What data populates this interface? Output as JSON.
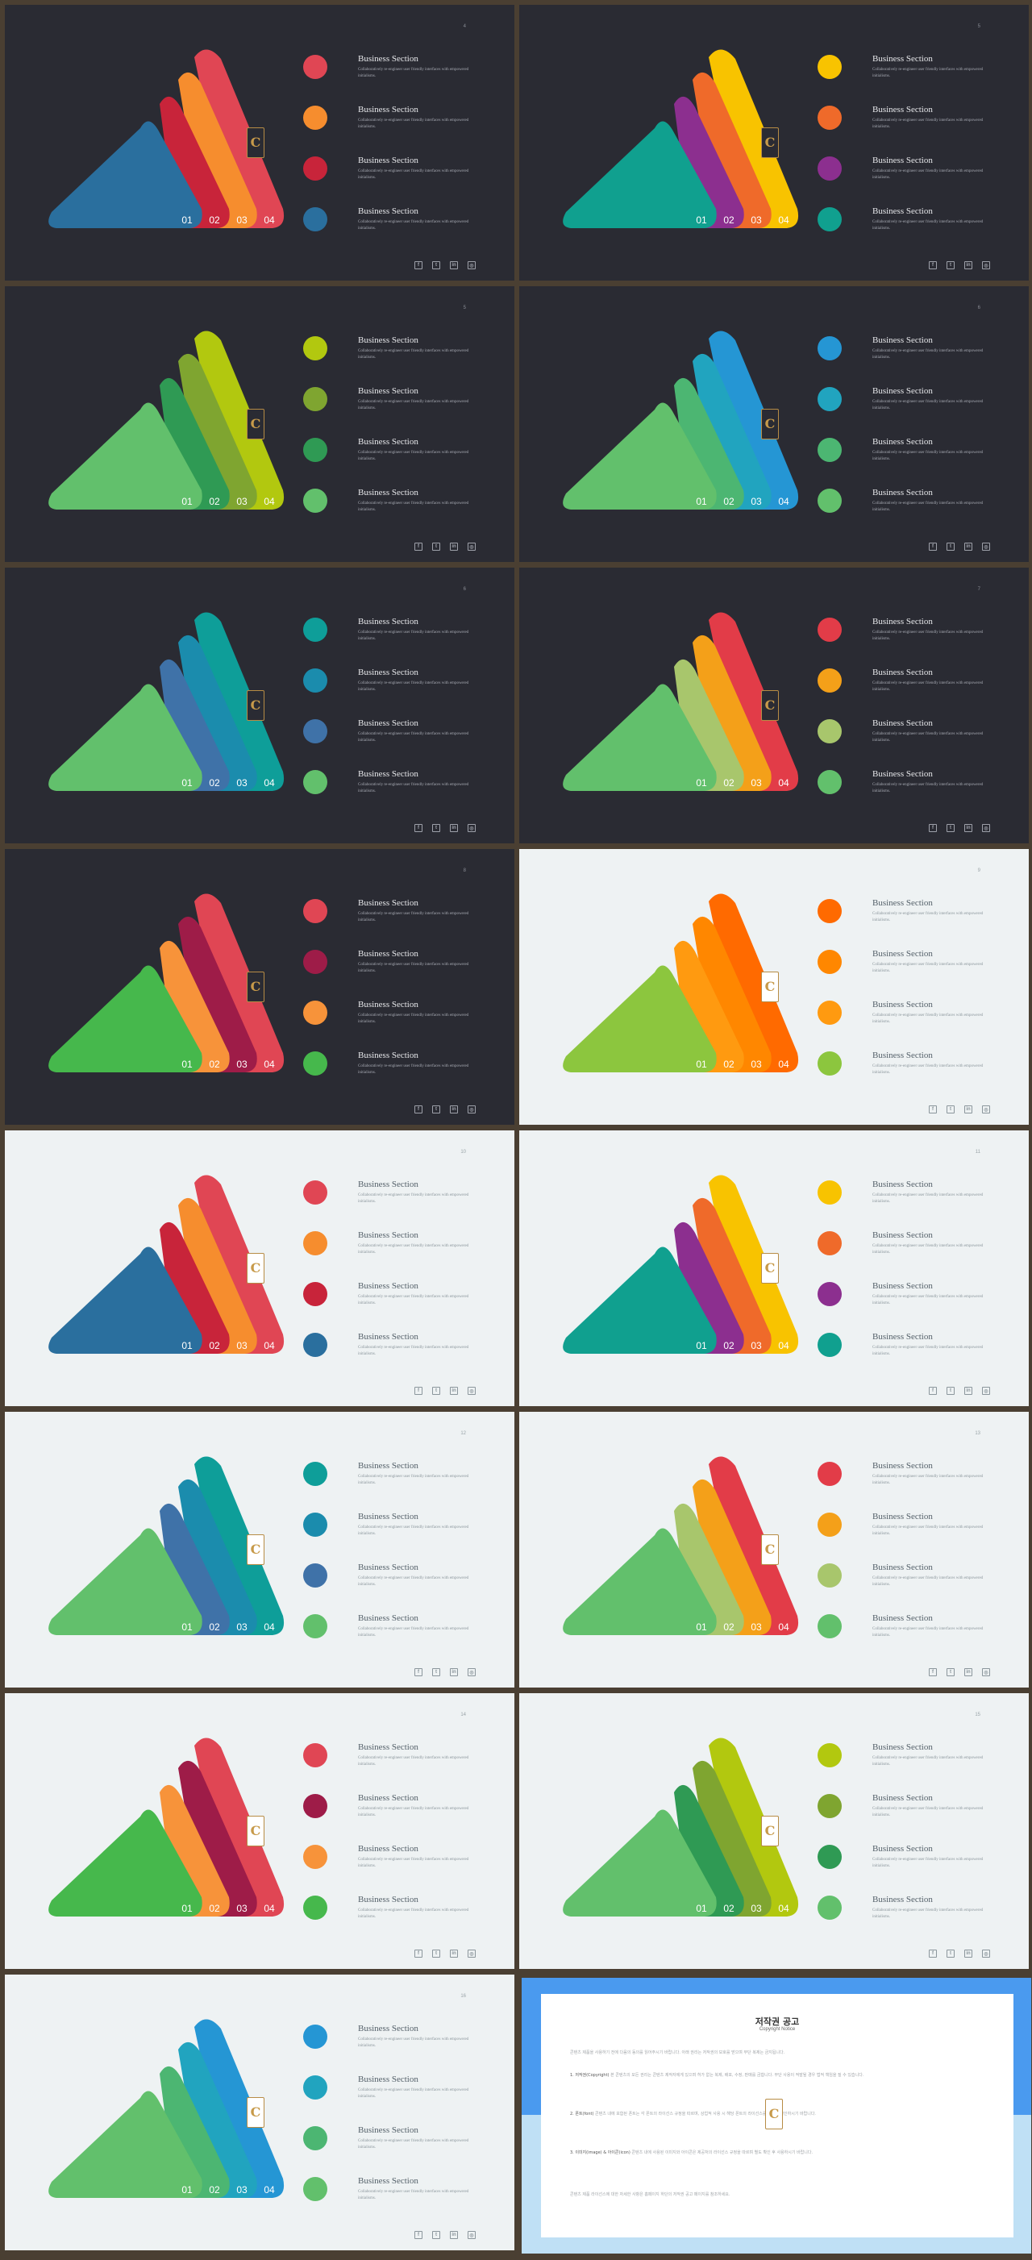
{
  "item_title": "Business Section",
  "item_desc": "Collaboratively re-engineer user friendly interfaces with empowered initialisms.",
  "tri_labels": [
    "01",
    "02",
    "03",
    "04"
  ],
  "logo_text": "C",
  "social_icons": [
    {
      "glyph": "f",
      "name": "facebook-icon"
    },
    {
      "glyph": "t",
      "name": "twitter-icon"
    },
    {
      "glyph": "in",
      "name": "linkedin-icon"
    },
    {
      "glyph": "◎",
      "name": "instagram-icon"
    }
  ],
  "slides": [
    {
      "page": "4",
      "theme": "dark",
      "colors": [
        "#e04654",
        "#f68d2e",
        "#c8243a",
        "#2a6f9e"
      ],
      "glyphs": [
        "",
        "",
        "",
        ""
      ]
    },
    {
      "page": "5",
      "theme": "dark",
      "colors": [
        "#f8c300",
        "#ef6a2a",
        "#8c2f8f",
        "#10a08f"
      ],
      "glyphs": [
        "",
        "",
        "",
        ""
      ]
    },
    {
      "page": "5",
      "theme": "dark",
      "colors": [
        "#b2c80f",
        "#7fa530",
        "#2f9a54",
        "#62c06c"
      ],
      "glyphs": [
        "",
        "",
        "",
        ""
      ]
    },
    {
      "page": "6",
      "theme": "dark",
      "colors": [
        "#2596d4",
        "#21a4bf",
        "#4cb672",
        "#62c06c"
      ],
      "glyphs": [
        "",
        "",
        "",
        ""
      ]
    },
    {
      "page": "6",
      "theme": "dark",
      "colors": [
        "#0e9e99",
        "#1b8cad",
        "#3f72a8",
        "#62c06c"
      ],
      "glyphs": [
        "",
        "",
        "",
        ""
      ]
    },
    {
      "page": "7",
      "theme": "dark",
      "colors": [
        "#e23c48",
        "#f4a019",
        "#a8c66c",
        "#62c06c"
      ],
      "glyphs": [
        "",
        "",
        "",
        ""
      ]
    },
    {
      "page": "8",
      "theme": "dark",
      "colors": [
        "#e04654",
        "#9e1c48",
        "#f7933a",
        "#46b84c"
      ],
      "glyphs": [
        "",
        "",
        "",
        ""
      ]
    },
    {
      "page": "9",
      "theme": "light",
      "colors": [
        "#ff6a00",
        "#ff8700",
        "#ff9a10",
        "#8cc63e"
      ],
      "glyphs": [
        "",
        "",
        "",
        ""
      ]
    },
    {
      "page": "10",
      "theme": "light",
      "colors": [
        "#e04654",
        "#f68d2e",
        "#c8243a",
        "#2a6f9e"
      ],
      "glyphs": [
        "",
        "",
        "",
        ""
      ]
    },
    {
      "page": "11",
      "theme": "light",
      "colors": [
        "#f8c300",
        "#ef6a2a",
        "#8c2f8f",
        "#10a08f"
      ],
      "glyphs": [
        "",
        "",
        "",
        ""
      ]
    },
    {
      "page": "12",
      "theme": "light",
      "colors": [
        "#0e9e99",
        "#1b8cad",
        "#3f72a8",
        "#62c06c"
      ],
      "glyphs": [
        "",
        "",
        "",
        ""
      ]
    },
    {
      "page": "13",
      "theme": "light",
      "colors": [
        "#e23c48",
        "#f4a019",
        "#a8c66c",
        "#62c06c"
      ],
      "glyphs": [
        "",
        "",
        "",
        ""
      ]
    },
    {
      "page": "14",
      "theme": "light",
      "colors": [
        "#e04654",
        "#9e1c48",
        "#f7933a",
        "#46b84c"
      ],
      "glyphs": [
        "",
        "",
        "",
        ""
      ]
    },
    {
      "page": "15",
      "theme": "light",
      "colors": [
        "#b2c80f",
        "#7fa530",
        "#2f9a54",
        "#62c06c"
      ],
      "glyphs": [
        "",
        "",
        "",
        ""
      ]
    },
    {
      "page": "16",
      "theme": "light",
      "colors": [
        "#2596d4",
        "#21a4bf",
        "#4cb672",
        "#62c06c"
      ],
      "glyphs": [
        "",
        "",
        "",
        ""
      ]
    }
  ],
  "copyright": {
    "title": "저작권 공고",
    "subtitle": "Copyright Notice",
    "intro": "콘텐츠 제품을 사용하기 전에 다음의 동의를 읽어주시기 바랍니다. 아래 권리는 저작권의 보호를 받으며 무단 복제는 금지됩니다.",
    "s1_head": "1. 저작권(Copyright)",
    "s1_body": "본 콘텐츠의 모든 권리는 콘텐츠 제작자에게 있으며 허가 없는 복제, 배포, 수정, 판매를 금합니다. 무단 사용이 적발될 경우 법적 책임을 질 수 있습니다.",
    "s2_head": "2. 폰트(font)",
    "s2_body": "콘텐츠 내에 포함된 폰트는 각 폰트의 라이선스 규정을 따르며, 상업적 사용 시 해당 폰트의 라이선스를 반드시 확인하시기 바랍니다.",
    "s3_head": "3. 이미지(image) & 아이콘(icon)",
    "s3_body": "콘텐츠 내에 사용된 이미지와 아이콘은 제공처의 라이선스 규정을 따르며 별도 확인 후 사용하시기 바랍니다.",
    "outro": "콘텐츠 제품 라이선스에 대한 자세한 사항은 홈페이지 하단의 저작권 공고 페이지를 참조하세요."
  }
}
